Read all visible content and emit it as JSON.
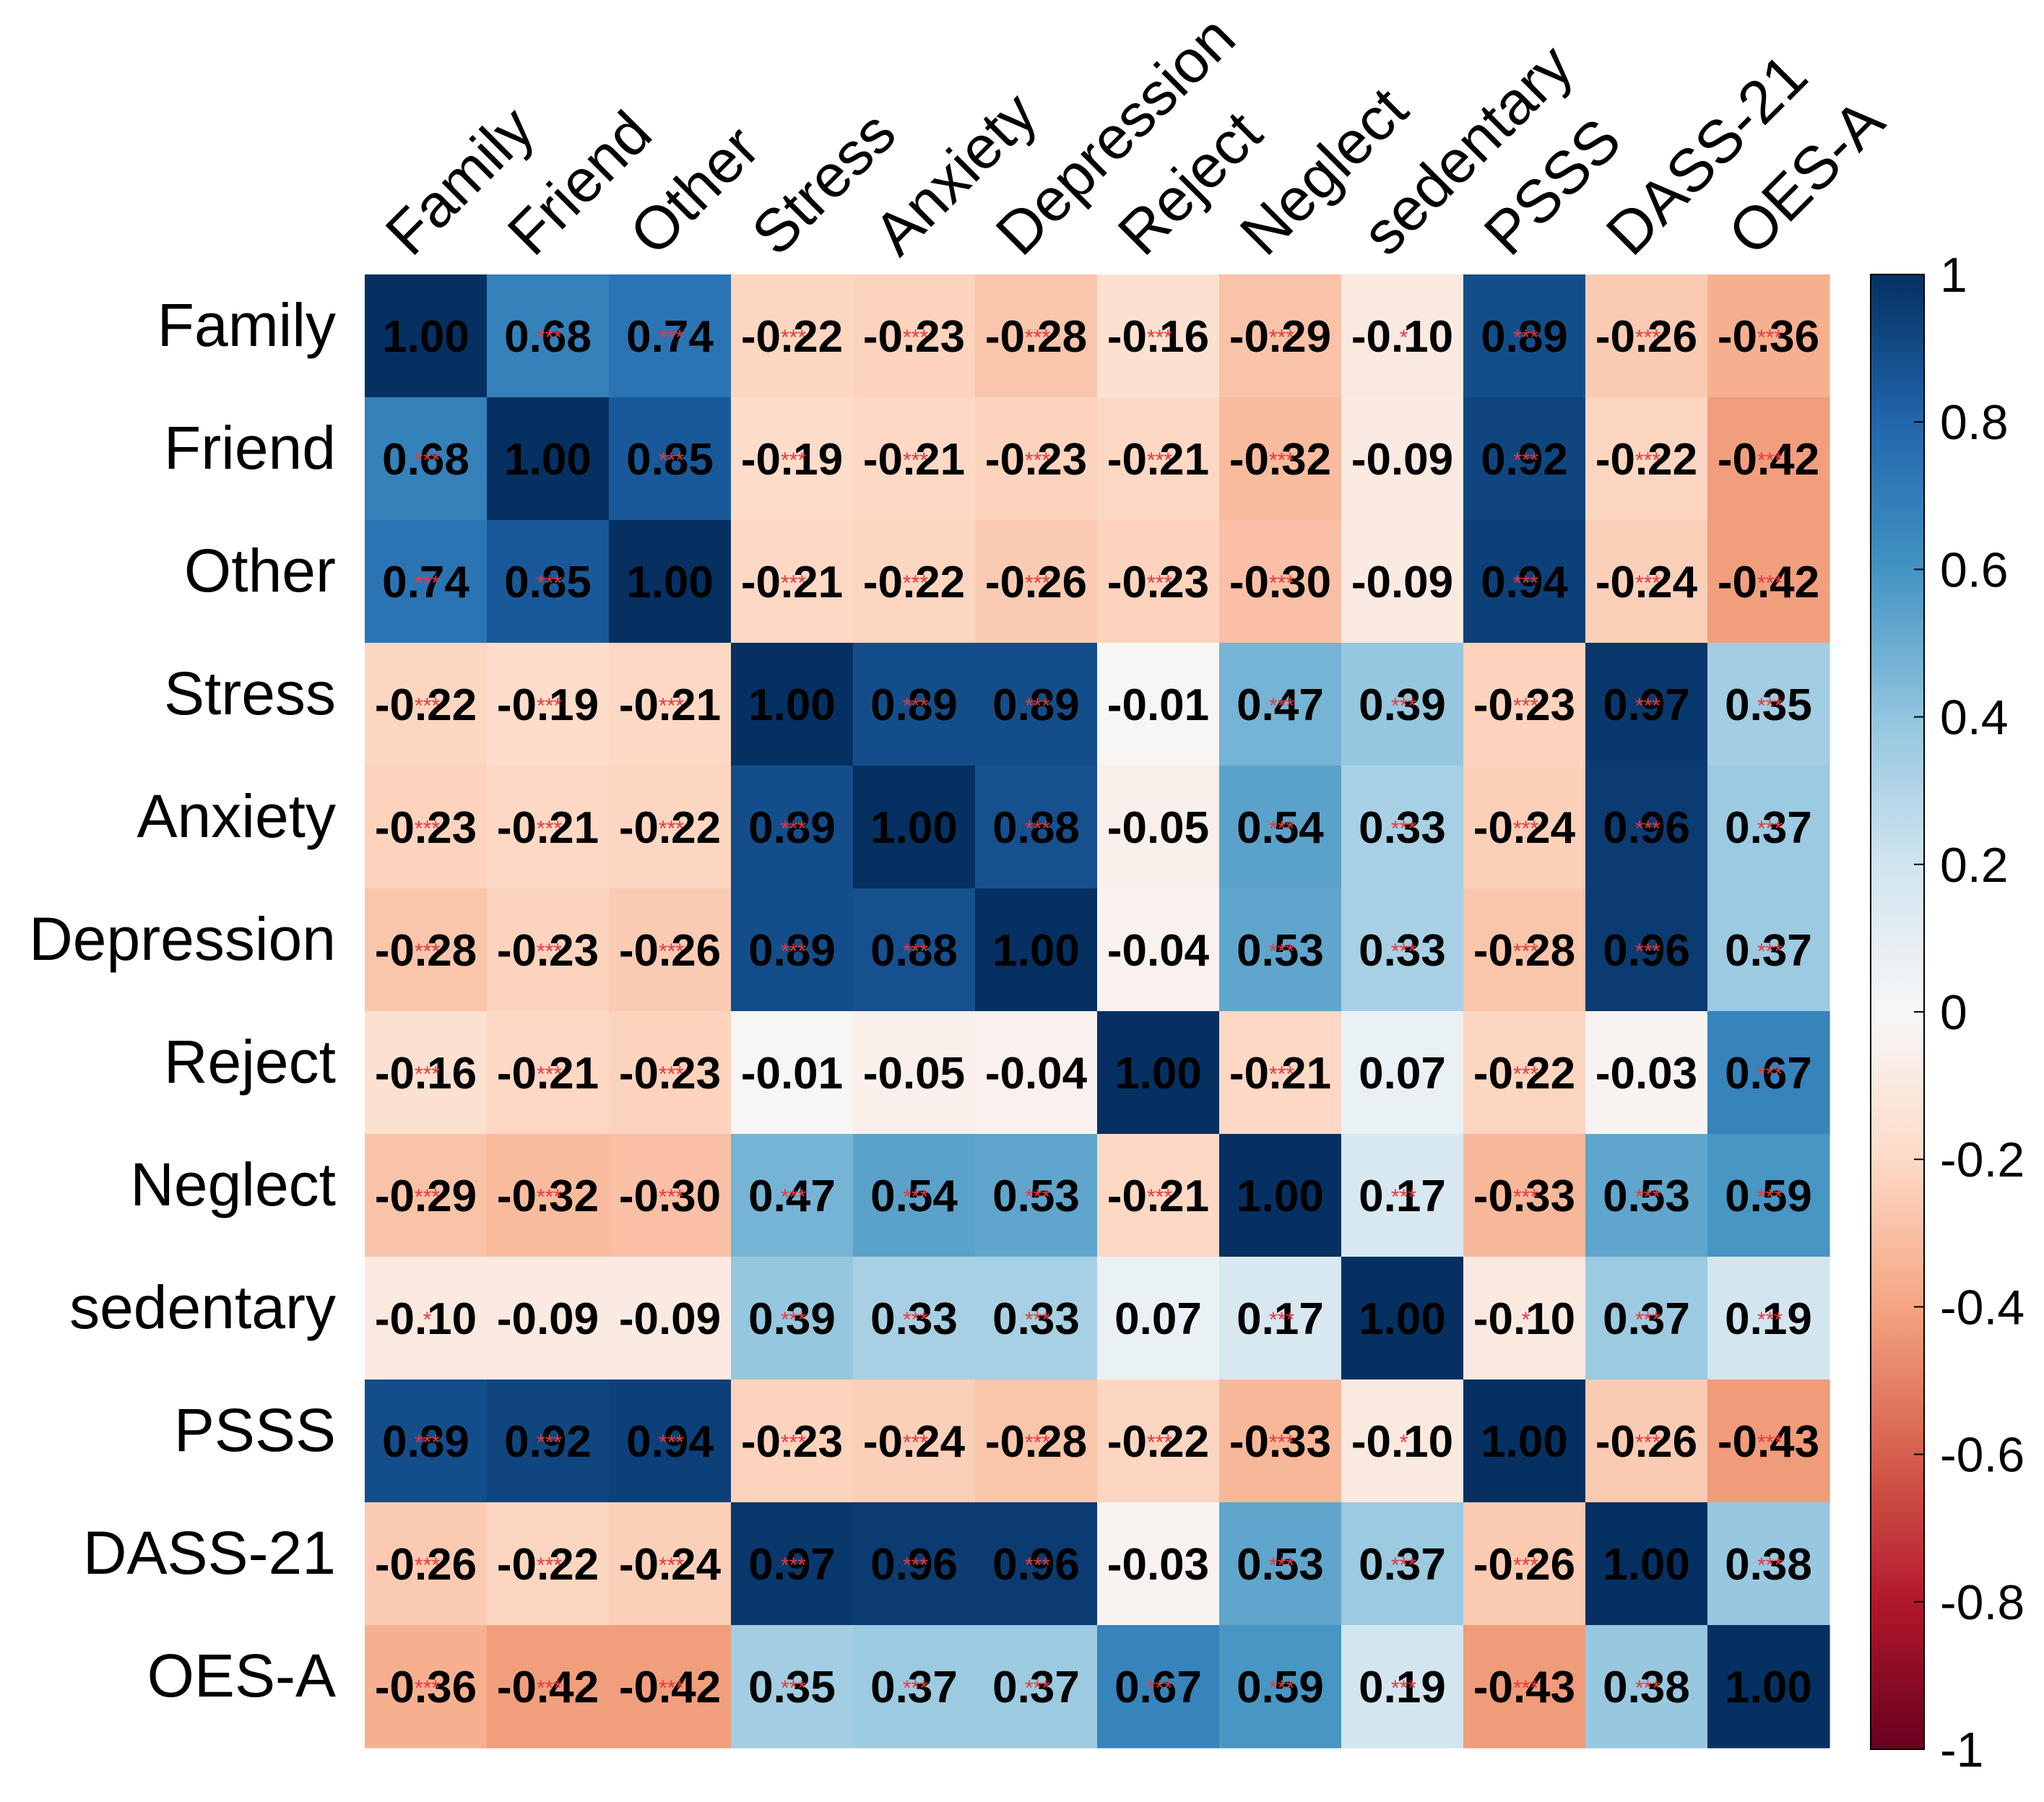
{
  "chart_data": {
    "type": "heatmap",
    "title": "",
    "variables": [
      "Family",
      "Friend",
      "Other",
      "Stress",
      "Anxiety",
      "Depression",
      "Reject",
      "Neglect",
      "sedentary",
      "PSSS",
      "DASS-21",
      "OES-A"
    ],
    "matrix": [
      [
        1.0,
        0.68,
        0.74,
        -0.22,
        -0.23,
        -0.28,
        -0.16,
        -0.29,
        -0.1,
        0.89,
        -0.26,
        -0.36
      ],
      [
        0.68,
        1.0,
        0.85,
        -0.19,
        -0.21,
        -0.23,
        -0.21,
        -0.32,
        -0.09,
        0.92,
        -0.22,
        -0.42
      ],
      [
        0.74,
        0.85,
        1.0,
        -0.21,
        -0.22,
        -0.26,
        -0.23,
        -0.3,
        -0.09,
        0.94,
        -0.24,
        -0.42
      ],
      [
        -0.22,
        -0.19,
        -0.21,
        1.0,
        0.89,
        0.89,
        -0.01,
        0.47,
        0.39,
        -0.23,
        0.97,
        0.35
      ],
      [
        -0.23,
        -0.21,
        -0.22,
        0.89,
        1.0,
        0.88,
        -0.05,
        0.54,
        0.33,
        -0.24,
        0.96,
        0.37
      ],
      [
        -0.28,
        -0.23,
        -0.26,
        0.89,
        0.88,
        1.0,
        -0.04,
        0.53,
        0.33,
        -0.28,
        0.96,
        0.37
      ],
      [
        -0.16,
        -0.21,
        -0.23,
        -0.01,
        -0.05,
        -0.04,
        1.0,
        -0.21,
        0.07,
        -0.22,
        -0.03,
        0.67
      ],
      [
        -0.29,
        -0.32,
        -0.3,
        0.47,
        0.54,
        0.53,
        -0.21,
        1.0,
        0.17,
        -0.33,
        0.53,
        0.59
      ],
      [
        -0.1,
        -0.09,
        -0.09,
        0.39,
        0.33,
        0.33,
        0.07,
        0.17,
        1.0,
        -0.1,
        0.37,
        0.19
      ],
      [
        0.89,
        0.92,
        0.94,
        -0.23,
        -0.24,
        -0.28,
        -0.22,
        -0.33,
        -0.1,
        1.0,
        -0.26,
        -0.43
      ],
      [
        -0.26,
        -0.22,
        -0.24,
        0.97,
        0.96,
        0.96,
        -0.03,
        0.53,
        0.37,
        -0.26,
        1.0,
        0.38
      ],
      [
        -0.36,
        -0.42,
        -0.42,
        0.35,
        0.37,
        0.37,
        0.67,
        0.59,
        0.19,
        -0.43,
        0.38,
        1.0
      ]
    ],
    "significance": [
      [
        "",
        "***",
        "***",
        "***",
        "***",
        "***",
        "***",
        "***",
        "*",
        "***",
        "***",
        "***"
      ],
      [
        "***",
        "",
        "***",
        "***",
        "***",
        "***",
        "***",
        "***",
        "",
        "***",
        "***",
        "***"
      ],
      [
        "***",
        "***",
        "",
        "***",
        "***",
        "***",
        "***",
        "***",
        "",
        "***",
        "***",
        "***"
      ],
      [
        "***",
        "***",
        "***",
        "",
        "***",
        "***",
        "",
        "***",
        "***",
        "***",
        "***",
        "***"
      ],
      [
        "***",
        "***",
        "***",
        "***",
        "",
        "***",
        "",
        "***",
        "***",
        "***",
        "***",
        "***"
      ],
      [
        "***",
        "***",
        "***",
        "***",
        "***",
        "",
        "",
        "***",
        "***",
        "***",
        "***",
        "***"
      ],
      [
        "***",
        "***",
        "***",
        "",
        "",
        "",
        "",
        "***",
        "",
        "***",
        "",
        "***"
      ],
      [
        "***",
        "***",
        "***",
        "***",
        "***",
        "***",
        "***",
        "",
        "***",
        "***",
        "***",
        "***"
      ],
      [
        "*",
        "",
        "",
        "***",
        "***",
        "***",
        "",
        "***",
        "",
        "*",
        "***",
        "***"
      ],
      [
        "***",
        "***",
        "***",
        "***",
        "***",
        "***",
        "***",
        "***",
        "*",
        "",
        "***",
        "***"
      ],
      [
        "***",
        "***",
        "***",
        "***",
        "***",
        "***",
        "",
        "***",
        "***",
        "***",
        "",
        "***"
      ],
      [
        "***",
        "***",
        "***",
        "***",
        "***",
        "***",
        "***",
        "***",
        "***",
        "***",
        "***",
        ""
      ]
    ],
    "color_scale": {
      "range": [
        -1,
        1
      ],
      "ticks": [
        "1",
        "0.8",
        "0.6",
        "0.4",
        "0.2",
        "0",
        "-0.2",
        "-0.4",
        "-0.6",
        "-0.8",
        "-1"
      ],
      "stops": [
        {
          "value": -1.0,
          "color": "#67001f"
        },
        {
          "value": -0.8,
          "color": "#b2182b"
        },
        {
          "value": -0.6,
          "color": "#d6604d"
        },
        {
          "value": -0.4,
          "color": "#f4a582"
        },
        {
          "value": -0.2,
          "color": "#fddbc7"
        },
        {
          "value": 0.0,
          "color": "#f7f7f7"
        },
        {
          "value": 0.2,
          "color": "#d1e5f0"
        },
        {
          "value": 0.4,
          "color": "#92c5de"
        },
        {
          "value": 0.6,
          "color": "#4393c3"
        },
        {
          "value": 0.8,
          "color": "#2166ac"
        },
        {
          "value": 1.0,
          "color": "#053061"
        }
      ]
    },
    "value_text_color": "#000000",
    "significance_color": "#e8383f"
  }
}
